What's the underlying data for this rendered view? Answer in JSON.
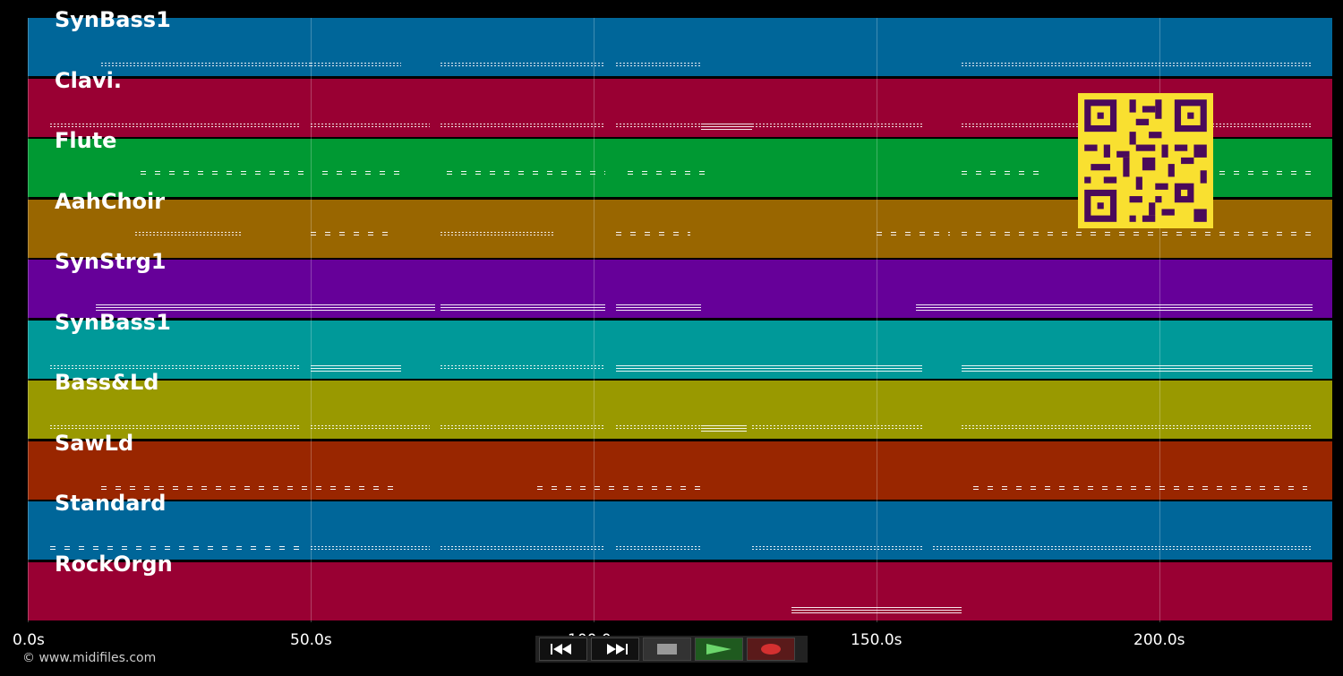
{
  "tracks": [
    {
      "name": "SynBass1",
      "color": "#006699",
      "notes": [
        [
          13,
          50,
          "dot"
        ],
        [
          50,
          66,
          "dot"
        ],
        [
          73,
          102,
          "dot"
        ],
        [
          104,
          119,
          "dot"
        ],
        [
          165,
          227,
          "dot"
        ]
      ]
    },
    {
      "name": "Clavi.",
      "color": "#990033",
      "notes": [
        [
          4,
          48,
          "dot"
        ],
        [
          50,
          71,
          "dot"
        ],
        [
          73,
          102,
          "dot"
        ],
        [
          104,
          119,
          "dot"
        ],
        [
          119,
          128,
          "line"
        ],
        [
          128,
          158,
          "dot"
        ],
        [
          165,
          227,
          "dot"
        ]
      ]
    },
    {
      "name": "Flute",
      "color": "#009933",
      "notes": [
        [
          20,
          49,
          "dash"
        ],
        [
          52,
          67,
          "dash"
        ],
        [
          74,
          102,
          "dash"
        ],
        [
          106,
          120,
          "dash"
        ],
        [
          165,
          180,
          "dash"
        ],
        [
          208,
          227,
          "dash"
        ]
      ]
    },
    {
      "name": "AahChoir",
      "color": "#996600",
      "notes": [
        [
          19,
          38,
          "dot"
        ],
        [
          50,
          64,
          "dash"
        ],
        [
          73,
          93,
          "dot"
        ],
        [
          104,
          117,
          "dash"
        ],
        [
          150,
          163,
          "dash"
        ],
        [
          165,
          227,
          "dash"
        ]
      ]
    },
    {
      "name": "SynStrg1",
      "color": "#660099",
      "notes": [
        [
          12,
          50,
          "line"
        ],
        [
          50,
          72,
          "line"
        ],
        [
          73,
          102,
          "line"
        ],
        [
          104,
          119,
          "line"
        ],
        [
          157,
          227,
          "line"
        ]
      ]
    },
    {
      "name": "SynBass1",
      "color": "#009999",
      "notes": [
        [
          4,
          48,
          "dot"
        ],
        [
          50,
          66,
          "line"
        ],
        [
          73,
          102,
          "dot"
        ],
        [
          104,
          158,
          "line"
        ],
        [
          165,
          227,
          "line"
        ]
      ]
    },
    {
      "name": "Bass&Ld",
      "color": "#999900",
      "notes": [
        [
          4,
          48,
          "dot"
        ],
        [
          50,
          71,
          "dot"
        ],
        [
          73,
          102,
          "dot"
        ],
        [
          104,
          119,
          "dot"
        ],
        [
          119,
          127,
          "line"
        ],
        [
          128,
          158,
          "dot"
        ],
        [
          165,
          227,
          "dot"
        ]
      ]
    },
    {
      "name": "SawLd",
      "color": "#992600",
      "notes": [
        [
          13,
          65,
          "dash"
        ],
        [
          90,
          120,
          "dash"
        ],
        [
          167,
          226,
          "dash"
        ]
      ]
    },
    {
      "name": "Standard",
      "color": "#006699",
      "notes": [
        [
          4,
          48,
          "dash"
        ],
        [
          50,
          71,
          "dot"
        ],
        [
          73,
          102,
          "dot"
        ],
        [
          104,
          119,
          "dot"
        ],
        [
          128,
          158,
          "dot"
        ],
        [
          160,
          227,
          "dot"
        ]
      ]
    },
    {
      "name": "RockOrgn",
      "color": "#990033",
      "notes": [
        [
          135,
          165,
          "line"
        ]
      ]
    }
  ],
  "axis": {
    "ticks": [
      "0.0s",
      "50.0s",
      "100.0s",
      "150.0s",
      "200.0s"
    ],
    "tick_values": [
      0,
      50,
      100,
      150,
      200
    ],
    "max": 230.5
  },
  "copyright": "© www.midifiles.com",
  "transport": {
    "rewind": "rewind-icon",
    "fast_forward": "fast-forward-icon",
    "stop": "stop-icon",
    "play": "play-icon",
    "record": "record-icon"
  }
}
